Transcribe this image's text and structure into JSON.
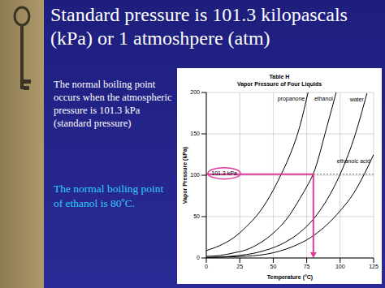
{
  "slide": {
    "title": "Standard pressure is 101.3 kilopascals (kPa) or 1 atmoshpere (atm)",
    "text": "The normal boiling point occurs when the atmospheric pressure is 101.3 kPa (standard pressure)",
    "highlight": "The normal boiling point of ethanol is 80ºC."
  },
  "chart_data": {
    "type": "line",
    "table_label": "Table H",
    "title": "Vapor Pressure of Four Liquids",
    "x_label": "Temperature (°C)",
    "y_label": "Vapor Pressure (kPa)",
    "xlim": [
      0,
      125
    ],
    "xticks": [
      0,
      25,
      50,
      75,
      100,
      125
    ],
    "ylim": [
      0,
      200
    ],
    "yticks": [
      0,
      50,
      100,
      150,
      200
    ],
    "grid": true,
    "series": [
      {
        "name": "propanone",
        "color": "#000000",
        "x": [
          0,
          10,
          20,
          30,
          40,
          50,
          56,
          60,
          70,
          76
        ],
        "values": [
          9,
          15,
          24,
          38,
          56,
          82,
          101.3,
          115,
          160,
          200
        ]
      },
      {
        "name": "ethanol",
        "color": "#000000",
        "x": [
          0,
          10,
          20,
          30,
          40,
          50,
          60,
          70,
          75,
          80,
          90,
          97
        ],
        "values": [
          2,
          3,
          6,
          10,
          18,
          30,
          47,
          72,
          86,
          102,
          158,
          200
        ]
      },
      {
        "name": "water",
        "color": "#000000",
        "x": [
          0,
          20,
          40,
          60,
          70,
          80,
          90,
          100,
          110,
          120
        ],
        "values": [
          0.6,
          2.3,
          7.4,
          20,
          31,
          47,
          70,
          101.3,
          143,
          199
        ]
      },
      {
        "name": "ethanoic acid",
        "color": "#000000",
        "x": [
          0,
          20,
          40,
          60,
          80,
          90,
          100,
          110,
          118,
          125
        ],
        "values": [
          0.5,
          1.5,
          3.5,
          11,
          27,
          40,
          57,
          78,
          101.3,
          125
        ]
      }
    ],
    "annotation": {
      "text": "101.3 kPa",
      "pressure": 101.3,
      "boiling_point": 80
    }
  }
}
